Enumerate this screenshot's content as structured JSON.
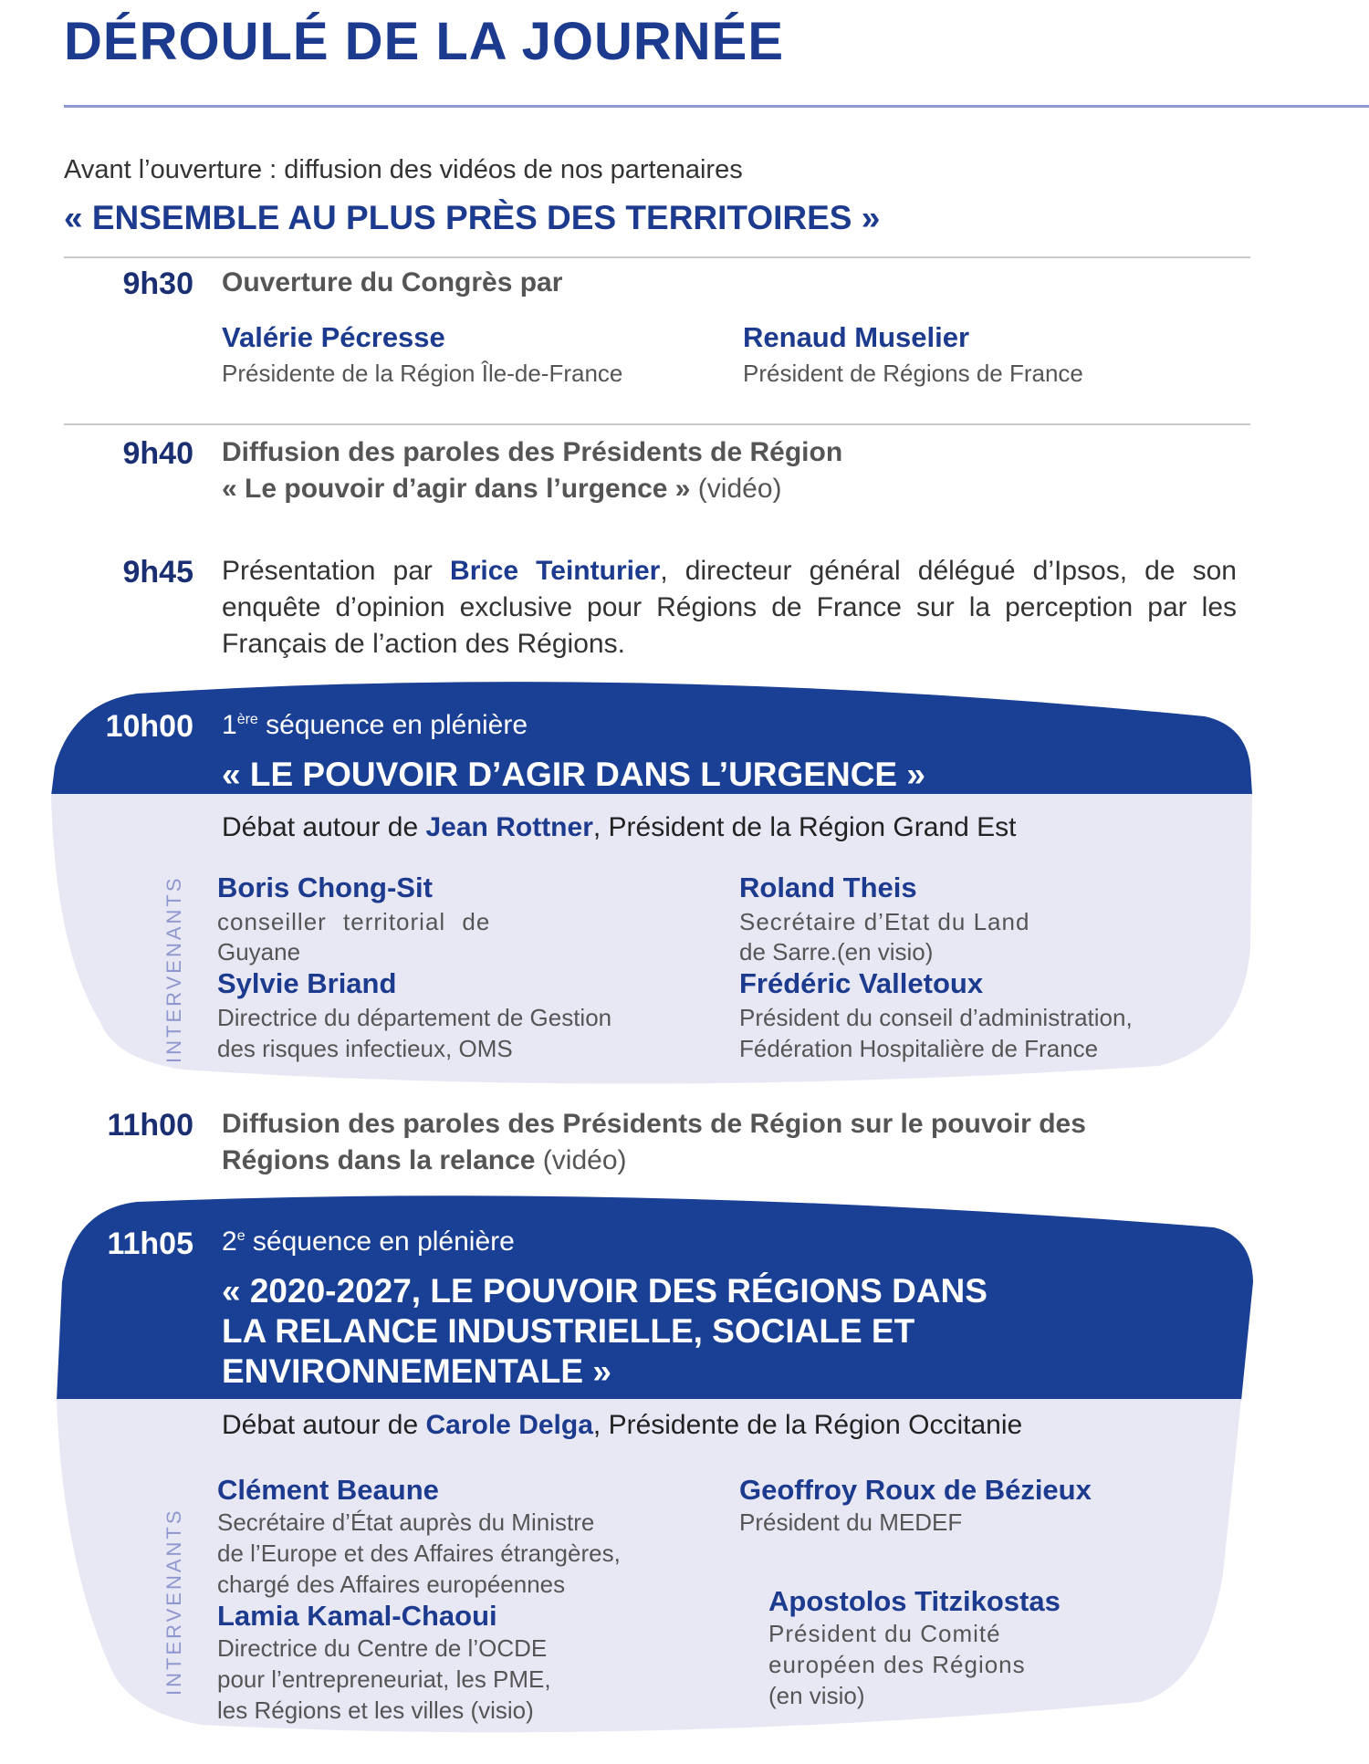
{
  "title": "DÉROULÉ DE LA JOURNÉE",
  "intro": "Avant l’ouverture : diffusion des vidéos de nos partenaires",
  "intro_title": "« ENSEMBLE AU PLUS PRÈS DES TERRITOIRES »",
  "colors": {
    "primary": "#1c3a8e",
    "block_dark": "#1a4096",
    "block_light": "#e8e8f5",
    "rule": "#8f97cf"
  },
  "s930": {
    "time": "9h30",
    "text": "Ouverture du Congrès par",
    "speakers": [
      {
        "name": "Valérie Pécresse",
        "role": "Présidente de la Région Île-de-France"
      },
      {
        "name": "Renaud Muselier",
        "role": "Président de Régions de France"
      }
    ]
  },
  "s940": {
    "time": "9h40",
    "line1": "Diffusion des paroles des Présidents de Région",
    "line2": "« Le pouvoir d’agir dans l’urgence »",
    "line2_suffix": " (vidéo)"
  },
  "s945": {
    "time": "9h45",
    "pre": "Présentation par ",
    "name": "Brice Teinturier",
    "post": ", directeur général délégué d’Ipsos, de son enquête d’opinion exclusive pour Régions de France sur la perception par les Français de l’action des Régions."
  },
  "s1000": {
    "time": "10h00",
    "seq_num": "1",
    "seq_sup": "ère",
    "seq_label": " séquence en plénière",
    "theme": "« LE POUVOIR D’AGIR DANS L’URGENCE »",
    "debate_pre": "Débat autour de ",
    "debate_name": "Jean Rottner",
    "debate_post": ", Président de la Région Grand Est",
    "side_label": "INTERVENANTS",
    "speakers": [
      {
        "name": "Boris Chong-Sit",
        "role1": "conseiller territorial de",
        "role2": "Guyane"
      },
      {
        "name": "Roland Theis",
        "role1": "Secrétaire d’Etat du Land",
        "role2": "de Sarre.(en visio)"
      },
      {
        "name": "Sylvie Briand",
        "role1": "Directrice du département de Gestion",
        "role2": "des risques infectieux, OMS"
      },
      {
        "name": "Frédéric Valletoux",
        "role1": "Président du conseil d’administration,",
        "role2": "Fédération Hospitalière de France"
      }
    ]
  },
  "s1100": {
    "time": "11h00",
    "line1": "Diffusion des paroles des Présidents de Région sur le pouvoir des",
    "line2": "Régions dans la relance",
    "line2_suffix": " (vidéo)"
  },
  "s1105": {
    "time": "11h05",
    "seq_num": "2",
    "seq_sup": "e",
    "seq_label": " séquence en plénière",
    "theme1": "« 2020-2027, LE POUVOIR DES RÉGIONS DANS",
    "theme2": "LA RELANCE INDUSTRIELLE, SOCIALE ET",
    "theme3": "ENVIRONNEMENTALE »",
    "debate_pre": "Débat autour de ",
    "debate_name": "Carole Delga",
    "debate_post": ", Présidente de la Région Occitanie",
    "side_label": "INTERVENANTS",
    "speakers": [
      {
        "name": "Clément Beaune",
        "roles": [
          "Secrétaire d’État auprès du Ministre",
          "de l’Europe et des Affaires étrangères,",
          "chargé des Affaires européennes"
        ]
      },
      {
        "name": "Geoffroy Roux de Bézieux",
        "roles": [
          "Président du MEDEF"
        ]
      },
      {
        "name": "Lamia Kamal-Chaoui",
        "roles": [
          "Directrice du Centre de l’OCDE",
          "pour l’entrepreneuriat, les PME,",
          "les Régions et les villes (visio)"
        ]
      },
      {
        "name": "Apostolos Titzikostas",
        "roles": [
          "Président du Comité",
          "européen des Régions",
          "(en visio)"
        ]
      }
    ]
  }
}
